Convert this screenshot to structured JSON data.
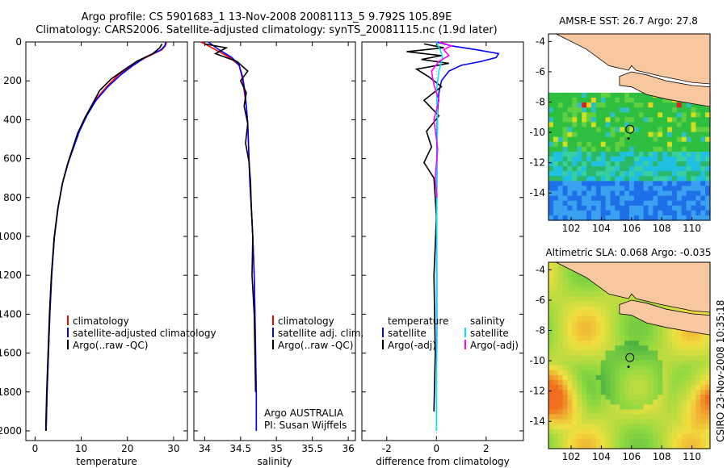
{
  "header": {
    "line1": "Argo profile: CS 5901683_1 13-Nov-2008 20081113_5 9.792S 105.89E",
    "line2": "Climatology: CARS2006. Satellite-adjusted climatology: synTS_20081115.nc (1.9d later)"
  },
  "colors": {
    "climatology": "#ff0000",
    "satellite": "#0000ff",
    "argo": "#000000",
    "salinity_satellite": "#00e5ff",
    "salinity_argo": "#ff00ff"
  },
  "side_label": "CSIRO 23-Nov-2008 10:35:18",
  "chart_data": [
    {
      "type": "line",
      "id": "temperature",
      "xlabel": "temperature",
      "xlim": [
        -2,
        33
      ],
      "ylim": [
        2050,
        0
      ],
      "xticks": [
        "0",
        "10",
        "20",
        "30"
      ],
      "xtick_values": [
        0,
        10,
        20,
        30
      ],
      "yticks": [
        "0",
        "200",
        "400",
        "600",
        "800",
        "1000",
        "1200",
        "1400",
        "1600",
        "1800",
        "2000"
      ],
      "ytick_values": [
        0,
        200,
        400,
        600,
        800,
        1000,
        1200,
        1400,
        1600,
        1800,
        2000
      ],
      "legend": [
        "climatology",
        "satellite-adjusted climatology",
        "Argo(..raw -QC)"
      ],
      "series": [
        {
          "name": "climatology",
          "color": "#ff0000",
          "x": [
            28.5,
            28.2,
            27.5,
            24,
            21,
            18,
            15.5,
            13,
            11,
            9.5,
            8.3,
            7.2,
            6,
            5,
            4.2,
            3.6,
            3.2,
            2.9,
            2.6,
            2.5,
            2.4
          ],
          "y": [
            0,
            20,
            40,
            80,
            120,
            170,
            230,
            300,
            380,
            460,
            540,
            620,
            720,
            850,
            1000,
            1200,
            1400,
            1600,
            1800,
            1900,
            2000
          ]
        },
        {
          "name": "satellite-adjusted climatology",
          "color": "#0000ff",
          "x": [
            28.3,
            28.1,
            27.3,
            23.8,
            21.3,
            18.5,
            15.8,
            13.2,
            11.2,
            9.6,
            8.4,
            7.2,
            6,
            5,
            4.2,
            3.6,
            3.2,
            2.9,
            2.6,
            2.5,
            2.4
          ],
          "y": [
            0,
            20,
            40,
            80,
            120,
            170,
            230,
            300,
            380,
            460,
            540,
            620,
            720,
            850,
            1000,
            1200,
            1400,
            1600,
            1800,
            1900,
            2000
          ]
        },
        {
          "name": "Argo(..raw -QC)",
          "color": "#000000",
          "x": [
            27.5,
            27,
            25.5,
            22,
            19.5,
            16.5,
            14,
            12.4,
            10.8,
            9.2,
            8.1,
            7,
            5.9,
            4.9,
            4.1,
            3.5,
            3.1,
            2.8,
            2.5,
            2.4,
            2.3
          ],
          "y": [
            10,
            30,
            60,
            100,
            140,
            190,
            250,
            320,
            390,
            470,
            550,
            630,
            730,
            860,
            1010,
            1210,
            1410,
            1610,
            1810,
            1910,
            2000
          ]
        }
      ]
    },
    {
      "type": "line",
      "id": "salinity",
      "xlabel": "salinity",
      "xlim": [
        33.85,
        36.1
      ],
      "ylim": [
        2050,
        0
      ],
      "xticks": [
        "34",
        "34.5",
        "35",
        "35.5",
        "36"
      ],
      "xtick_values": [
        34,
        34.5,
        35,
        35.5,
        36
      ],
      "legend": [
        "climatology",
        "satellite adj. clim.",
        "Argo(..raw -QC)"
      ],
      "annotations": [
        "Argo AUSTRALIA",
        "PI: Susan Wijffels"
      ],
      "series": [
        {
          "name": "climatology",
          "color": "#ff0000",
          "x": [
            33.95,
            34.15,
            34.35,
            34.48,
            34.52,
            34.55,
            34.58,
            34.6,
            34.61,
            34.62,
            34.63,
            34.65,
            34.67,
            34.69,
            34.7,
            34.71,
            34.72,
            34.72,
            34.72
          ],
          "y": [
            0,
            40,
            80,
            120,
            180,
            250,
            330,
            420,
            520,
            620,
            720,
            850,
            1000,
            1200,
            1400,
            1600,
            1800,
            1900,
            2000
          ]
        },
        {
          "name": "satellite adj. clim.",
          "color": "#0000ff",
          "x": [
            34.05,
            34.2,
            34.38,
            34.48,
            34.53,
            34.56,
            34.58,
            34.6,
            34.61,
            34.62,
            34.63,
            34.65,
            34.67,
            34.69,
            34.7,
            34.71,
            34.72,
            34.72,
            34.72
          ],
          "y": [
            0,
            40,
            80,
            120,
            180,
            250,
            330,
            420,
            520,
            620,
            720,
            850,
            1000,
            1200,
            1400,
            1600,
            1800,
            1900,
            2000
          ]
        },
        {
          "name": "Argo(..raw -QC)",
          "color": "#000000",
          "x": [
            34.0,
            34.3,
            34.15,
            34.45,
            34.6,
            34.5,
            34.58,
            34.55,
            34.6,
            34.57,
            34.62,
            34.64,
            34.65,
            34.67,
            34.66,
            34.69,
            34.7,
            34.71
          ],
          "y": [
            10,
            30,
            60,
            100,
            150,
            200,
            260,
            330,
            420,
            520,
            620,
            720,
            850,
            1000,
            1200,
            1400,
            1600,
            1800
          ]
        }
      ]
    },
    {
      "type": "line",
      "id": "difference",
      "xlabel": "difference from climatology",
      "xlim": [
        -3,
        3.5
      ],
      "ylim": [
        2050,
        0
      ],
      "xticks": [
        "-2",
        "0",
        "2"
      ],
      "xtick_values": [
        -2,
        0,
        2
      ],
      "legend_temperature": [
        "temperature",
        "satellite",
        "Argo(-adj)"
      ],
      "legend_salinity": [
        "salinity",
        "satellite",
        "Argo(-adj)"
      ],
      "series": [
        {
          "name": "temperature satellite",
          "color": "#0000ff",
          "x": [
            0,
            0.6,
            1.6,
            2.5,
            2.4,
            1.8,
            1.0,
            0.5,
            0.2,
            0.1,
            0.05,
            0.02,
            0.02,
            0.01,
            0.01,
            0.01,
            0,
            0,
            0
          ],
          "y": [
            0,
            20,
            40,
            60,
            80,
            100,
            120,
            150,
            200,
            260,
            350,
            500,
            700,
            900,
            1200,
            1500,
            1700,
            1900,
            2000
          ]
        },
        {
          "name": "temperature Argo(-adj)",
          "color": "#000000",
          "x": [
            -0.5,
            0.3,
            -1.2,
            0.2,
            -0.6,
            0.5,
            -0.8,
            -0.3,
            0.2,
            -0.5,
            0.1,
            -0.4,
            -0.2,
            -0.5,
            -0.1,
            0,
            -0.1,
            -0.05,
            -0.1
          ],
          "y": [
            10,
            30,
            50,
            70,
            90,
            110,
            140,
            180,
            230,
            300,
            380,
            460,
            540,
            620,
            700,
            900,
            1200,
            1600,
            1900
          ]
        },
        {
          "name": "salinity satellite",
          "color": "#00e5ff",
          "x": [
            0,
            0.15,
            0.25,
            0.1,
            0.0,
            0.05,
            0.02,
            0.01,
            0.01,
            0,
            0,
            0
          ],
          "y": [
            0,
            40,
            80,
            150,
            250,
            400,
            600,
            800,
            1000,
            1400,
            1800,
            2000
          ]
        },
        {
          "name": "salinity Argo(-adj)",
          "color": "#ff00ff",
          "x": [
            0.1,
            0.6,
            0.3,
            0.5,
            0.1,
            -0.2,
            -0.1,
            0.1,
            -0.1,
            0.05,
            -0.05,
            0.02
          ],
          "y": [
            0,
            20,
            40,
            70,
            100,
            150,
            220,
            300,
            400,
            550,
            700,
            800
          ]
        }
      ]
    },
    {
      "type": "heatmap",
      "id": "sst_map",
      "title": "AMSR-E SST: 26.7 Argo: 27.8",
      "xticks": [
        "102",
        "104",
        "106",
        "108",
        "110"
      ],
      "yticks": [
        "-4",
        "-6",
        "-8",
        "-10",
        "-12",
        "-14"
      ],
      "xlim": [
        100.5,
        111.2
      ],
      "ylim": [
        -15.8,
        -3.5
      ]
    },
    {
      "type": "heatmap",
      "id": "sla_map",
      "title": "Altimetric SLA: 0.068 Argo: -0.035",
      "xticks": [
        "102",
        "104",
        "106",
        "108",
        "110"
      ],
      "yticks": [
        "-4",
        "-6",
        "-8",
        "-10",
        "-12",
        "-14"
      ],
      "xlim": [
        100.5,
        111.2
      ],
      "ylim": [
        -15.8,
        -3.5
      ]
    }
  ]
}
